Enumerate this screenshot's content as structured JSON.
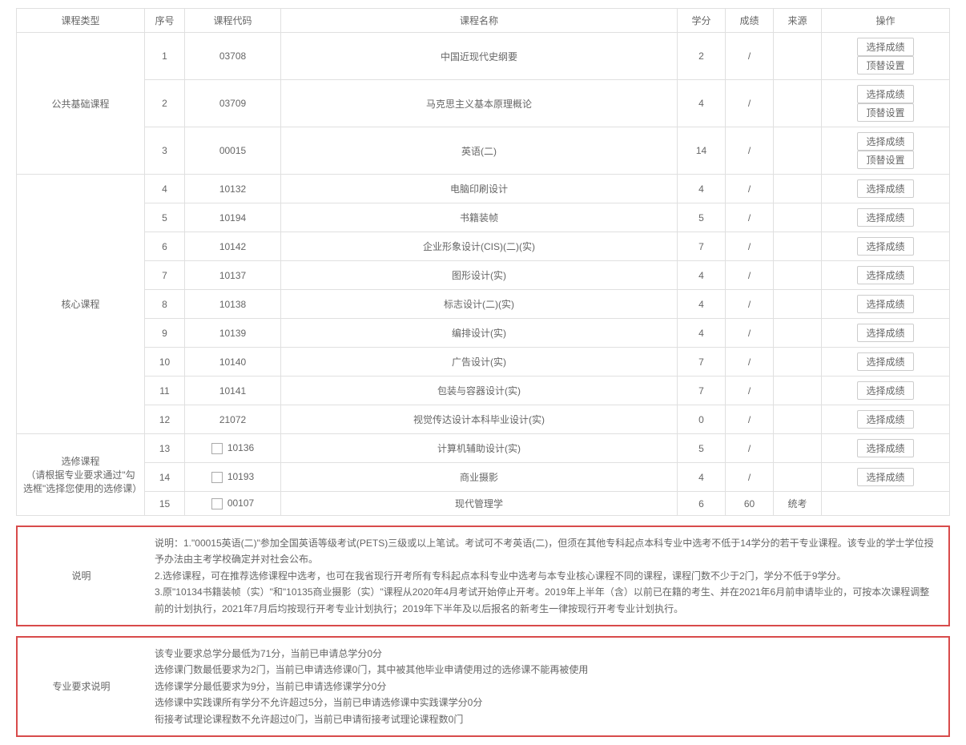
{
  "headers": {
    "type": "课程类型",
    "seq": "序号",
    "code": "课程代码",
    "name": "课程名称",
    "credit": "学分",
    "grade": "成绩",
    "source": "来源",
    "action": "操作"
  },
  "buttons": {
    "select_grade": "选择成绩",
    "top_setting": "顶替设置"
  },
  "groups": [
    {
      "type_label": "公共基础课程",
      "rows": [
        {
          "seq": "1",
          "code": "03708",
          "name": "中国近现代史纲要",
          "credit": "2",
          "grade": "/",
          "source": "",
          "has_checkbox": false,
          "has_top": true
        },
        {
          "seq": "2",
          "code": "03709",
          "name": "马克思主义基本原理概论",
          "credit": "4",
          "grade": "/",
          "source": "",
          "has_checkbox": false,
          "has_top": true
        },
        {
          "seq": "3",
          "code": "00015",
          "name": "英语(二)",
          "credit": "14",
          "grade": "/",
          "source": "",
          "has_checkbox": false,
          "has_top": true
        }
      ]
    },
    {
      "type_label": "核心课程",
      "rows": [
        {
          "seq": "4",
          "code": "10132",
          "name": "电脑印刷设计",
          "credit": "4",
          "grade": "/",
          "source": "",
          "has_checkbox": false,
          "has_top": false
        },
        {
          "seq": "5",
          "code": "10194",
          "name": "书籍装帧",
          "credit": "5",
          "grade": "/",
          "source": "",
          "has_checkbox": false,
          "has_top": false
        },
        {
          "seq": "6",
          "code": "10142",
          "name": "企业形象设计(CIS)(二)(实)",
          "credit": "7",
          "grade": "/",
          "source": "",
          "has_checkbox": false,
          "has_top": false
        },
        {
          "seq": "7",
          "code": "10137",
          "name": "图形设计(实)",
          "credit": "4",
          "grade": "/",
          "source": "",
          "has_checkbox": false,
          "has_top": false
        },
        {
          "seq": "8",
          "code": "10138",
          "name": "标志设计(二)(实)",
          "credit": "4",
          "grade": "/",
          "source": "",
          "has_checkbox": false,
          "has_top": false
        },
        {
          "seq": "9",
          "code": "10139",
          "name": "编排设计(实)",
          "credit": "4",
          "grade": "/",
          "source": "",
          "has_checkbox": false,
          "has_top": false
        },
        {
          "seq": "10",
          "code": "10140",
          "name": "广告设计(实)",
          "credit": "7",
          "grade": "/",
          "source": "",
          "has_checkbox": false,
          "has_top": false
        },
        {
          "seq": "11",
          "code": "10141",
          "name": "包装与容器设计(实)",
          "credit": "7",
          "grade": "/",
          "source": "",
          "has_checkbox": false,
          "has_top": false
        },
        {
          "seq": "12",
          "code": "21072",
          "name": "视觉传达设计本科毕业设计(实)",
          "credit": "0",
          "grade": "/",
          "source": "",
          "has_checkbox": false,
          "has_top": false
        }
      ]
    },
    {
      "type_label": "选修课程\n（请根据专业要求通过\"勾选框\"选择您使用的选修课）",
      "rows": [
        {
          "seq": "13",
          "code": "10136",
          "name": "计算机辅助设计(实)",
          "credit": "5",
          "grade": "/",
          "source": "",
          "has_checkbox": true,
          "has_top": false,
          "has_select": true
        },
        {
          "seq": "14",
          "code": "10193",
          "name": "商业摄影",
          "credit": "4",
          "grade": "/",
          "source": "",
          "has_checkbox": true,
          "has_top": false,
          "has_select": true
        },
        {
          "seq": "15",
          "code": "00107",
          "name": "现代管理学",
          "credit": "6",
          "grade": "60",
          "source": "统考",
          "has_checkbox": true,
          "has_top": false,
          "has_select": false
        }
      ]
    }
  ],
  "notes1": {
    "label": "说明",
    "lines": [
      "说明：1.\"00015英语(二)\"参加全国英语等级考试(PETS)三级或以上笔试。考试可不考英语(二)，但须在其他专科起点本科专业中选考不低于14学分的若干专业课程。该专业的学士学位授予办法由主考学校确定并对社会公布。",
      "2.选修课程，可在推荐选修课程中选考，也可在我省现行开考所有专科起点本科专业中选考与本专业核心课程不同的课程，课程门数不少于2门，学分不低于9学分。",
      "3.原\"10134书籍装帧（实）\"和\"10135商业摄影（实）\"课程从2020年4月考试开始停止开考。2019年上半年（含）以前已在籍的考生、并在2021年6月前申请毕业的，可按本次课程调整前的计划执行，2021年7月后均按现行开考专业计划执行；2019年下半年及以后报名的新考生一律按现行开考专业计划执行。"
    ]
  },
  "notes2": {
    "label": "专业要求说明",
    "lines": [
      "该专业要求总学分最低为71分，当前已申请总学分0分",
      "选修课门数最低要求为2门，当前已申请选修课0门，其中被其他毕业申请使用过的选修课不能再被使用",
      "选修课学分最低要求为9分，当前已申请选修课学分0分",
      "选修课中实践课所有学分不允许超过5分，当前已申请选修课中实践课学分0分",
      "衔接考试理论课程数不允许超过0门，当前已申请衔接考试理论课程数0门"
    ]
  },
  "colors": {
    "border": "#e0e0e0",
    "notes_border": "#d84b4b",
    "text": "#666666"
  }
}
